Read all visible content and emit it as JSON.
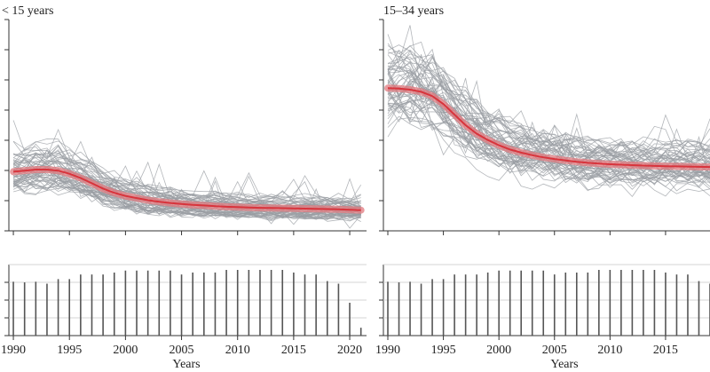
{
  "chart_data": [
    {
      "type": "line",
      "title": "< 15 years",
      "xlabel": "Years",
      "ylabel": "",
      "xlim": [
        1989.6,
        2021.5
      ],
      "x_ticks": [
        1990,
        1995,
        2000,
        2005,
        2010,
        2015,
        2020
      ],
      "ylim": [
        0,
        1
      ],
      "y_tick_count": 8,
      "grid": false,
      "series_count": 60,
      "trend": {
        "x": [
          1990,
          1991,
          1992,
          1993,
          1994,
          1995,
          1996,
          1997,
          1998,
          1999,
          2000,
          2001,
          2002,
          2003,
          2004,
          2005,
          2006,
          2007,
          2008,
          2009,
          2010,
          2011,
          2012,
          2013,
          2014,
          2015,
          2016,
          2017,
          2018,
          2019,
          2020,
          2021
        ],
        "values": [
          0.28,
          0.285,
          0.29,
          0.29,
          0.285,
          0.27,
          0.25,
          0.225,
          0.2,
          0.18,
          0.165,
          0.155,
          0.145,
          0.138,
          0.132,
          0.127,
          0.123,
          0.12,
          0.117,
          0.114,
          0.112,
          0.11,
          0.109,
          0.108,
          0.107,
          0.106,
          0.105,
          0.104,
          0.103,
          0.102,
          0.1,
          0.098
        ]
      },
      "counts": {
        "x": [
          1990,
          1991,
          1992,
          1993,
          1994,
          1995,
          1996,
          1997,
          1998,
          1999,
          2000,
          2001,
          2002,
          2003,
          2004,
          2005,
          2006,
          2007,
          2008,
          2009,
          2010,
          2011,
          2012,
          2013,
          2014,
          2015,
          2016,
          2017,
          2018,
          2019,
          2020,
          2021
        ],
        "values": [
          0.82,
          0.81,
          0.82,
          0.79,
          0.86,
          0.86,
          0.93,
          0.93,
          0.93,
          0.96,
          0.99,
          0.99,
          0.99,
          0.99,
          0.99,
          0.93,
          0.96,
          0.96,
          0.96,
          1.0,
          1.0,
          1.0,
          1.0,
          1.0,
          1.0,
          0.96,
          0.93,
          0.93,
          0.83,
          0.79,
          0.5,
          0.12
        ]
      }
    },
    {
      "type": "line",
      "title": "15–34 years",
      "xlabel": "Years",
      "ylabel": "",
      "xlim": [
        1989.6,
        2019
      ],
      "x_ticks": [
        1990,
        1995,
        2000,
        2005,
        2010,
        2015
      ],
      "ylim": [
        0,
        1
      ],
      "y_tick_count": 8,
      "grid": false,
      "series_count": 60,
      "trend": {
        "x": [
          1990,
          1991,
          1992,
          1993,
          1994,
          1995,
          1996,
          1997,
          1998,
          1999,
          2000,
          2001,
          2002,
          2003,
          2004,
          2005,
          2006,
          2007,
          2008,
          2009,
          2010,
          2011,
          2012,
          2013,
          2014,
          2015,
          2016,
          2017,
          2018,
          2019
        ],
        "values": [
          0.675,
          0.673,
          0.668,
          0.658,
          0.638,
          0.6,
          0.55,
          0.5,
          0.46,
          0.43,
          0.405,
          0.385,
          0.37,
          0.358,
          0.348,
          0.34,
          0.333,
          0.327,
          0.322,
          0.318,
          0.315,
          0.313,
          0.311,
          0.309,
          0.307,
          0.306,
          0.305,
          0.304,
          0.303,
          0.302
        ]
      },
      "counts": {
        "x": [
          1990,
          1991,
          1992,
          1993,
          1994,
          1995,
          1996,
          1997,
          1998,
          1999,
          2000,
          2001,
          2002,
          2003,
          2004,
          2005,
          2006,
          2007,
          2008,
          2009,
          2010,
          2011,
          2012,
          2013,
          2014,
          2015,
          2016,
          2017,
          2018,
          2019
        ],
        "values": [
          0.82,
          0.81,
          0.82,
          0.79,
          0.86,
          0.86,
          0.93,
          0.93,
          0.93,
          0.96,
          0.99,
          0.99,
          0.99,
          0.99,
          0.99,
          0.93,
          0.96,
          0.96,
          0.96,
          1.0,
          1.0,
          1.0,
          1.0,
          1.0,
          1.0,
          0.96,
          0.93,
          0.93,
          0.83,
          0.79
        ]
      }
    }
  ]
}
